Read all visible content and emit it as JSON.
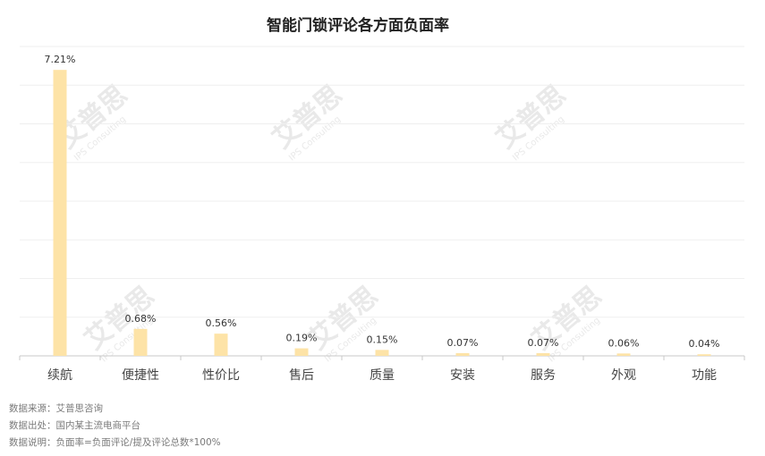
{
  "chart_data": {
    "type": "bar",
    "title": "智能门锁评论各方面负面率",
    "categories": [
      "续航",
      "便捷性",
      "性价比",
      "售后",
      "质量",
      "安装",
      "服务",
      "外观",
      "功能"
    ],
    "values": [
      7.21,
      0.68,
      0.56,
      0.19,
      0.15,
      0.07,
      0.07,
      0.06,
      0.04
    ],
    "data_labels": [
      "7.21%",
      "0.68%",
      "0.56%",
      "0.19%",
      "0.15%",
      "0.07%",
      "0.07%",
      "0.06%",
      "0.04%"
    ],
    "ylim": [
      0,
      7.8
    ],
    "grid": true,
    "bar_color": "#fde3a7"
  },
  "notes": [
    "数据来源：艾普思咨询",
    "数据出处：国内某主流电商平台",
    "数据说明：负面率=负面评论/提及评论总数*100%"
  ],
  "watermark": {
    "brand": "艾普思",
    "sub": "IPS Consulting"
  }
}
